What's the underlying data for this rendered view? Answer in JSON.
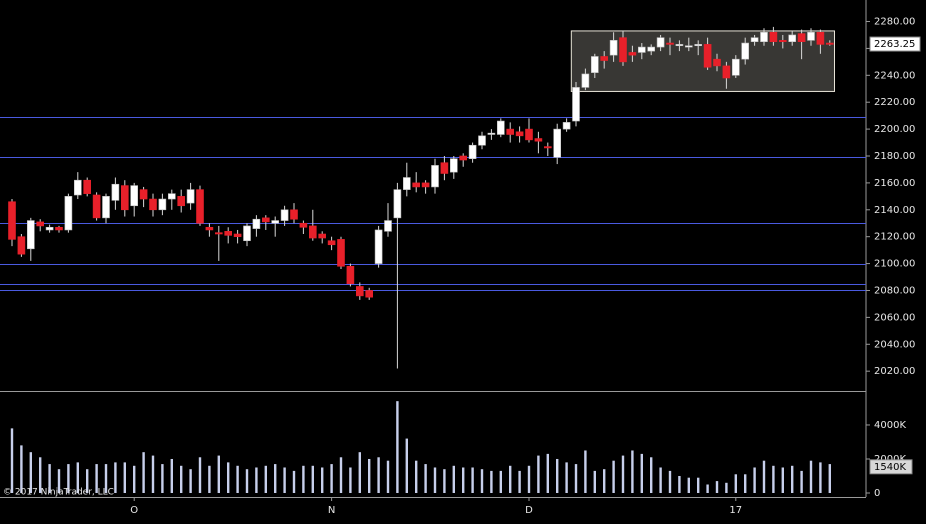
{
  "chart_data": [
    {
      "type": "candlestick",
      "credit": "© 2017 NinjaTrader, LLC",
      "categories": [
        null,
        null,
        null,
        null,
        null,
        null,
        null,
        null,
        null,
        null,
        null,
        null,
        null,
        "O",
        null,
        null,
        null,
        null,
        null,
        null,
        null,
        null,
        null,
        null,
        null,
        null,
        null,
        null,
        null,
        null,
        null,
        null,
        null,
        null,
        "N",
        null,
        null,
        null,
        null,
        null,
        null,
        null,
        null,
        null,
        null,
        null,
        null,
        null,
        null,
        null,
        null,
        null,
        null,
        null,
        null,
        "D",
        null,
        null,
        null,
        null,
        null,
        null,
        null,
        null,
        null,
        null,
        null,
        null,
        null,
        null,
        null,
        null,
        null,
        null,
        null,
        null,
        null,
        "17",
        null,
        null,
        null,
        null,
        null,
        null,
        null,
        null,
        null,
        null
      ],
      "open": [
        2146,
        2120,
        2111,
        2131,
        2125,
        2127,
        2125,
        2151,
        2162,
        2151,
        2134,
        2147,
        2158,
        2143,
        2155,
        2148,
        2140,
        2148,
        2150,
        2145,
        2155,
        2127,
        2123,
        2124,
        2122,
        2117,
        2126,
        2134,
        2130,
        2132,
        2140,
        2130,
        2128,
        2122,
        2117,
        2118,
        2098,
        2083,
        2080,
        2100,
        2124,
        2134,
        2155,
        2160,
        2160,
        2157,
        2175,
        2168,
        2180,
        2178,
        2188,
        2196,
        2196,
        2200,
        2198,
        2200,
        2193,
        2187,
        2179,
        2200,
        2206,
        2231,
        2242,
        2254,
        2255,
        2268,
        2257,
        2257,
        2258,
        2261,
        2264,
        2262,
        2261,
        2262,
        2263,
        2252,
        2247,
        2240,
        2252,
        2265,
        2265,
        2272,
        2266,
        2265,
        2271,
        2266,
        2272,
        2264
      ],
      "high": [
        2148,
        2122,
        2134,
        2133,
        2129,
        2128,
        2152,
        2168,
        2164,
        2153,
        2152,
        2164,
        2162,
        2160,
        2157,
        2152,
        2152,
        2155,
        2155,
        2160,
        2158,
        2130,
        2128,
        2127,
        2125,
        2130,
        2136,
        2136,
        2135,
        2143,
        2145,
        2132,
        2140,
        2124,
        2120,
        2120,
        2100,
        2086,
        2082,
        2128,
        2145,
        2160,
        2175,
        2168,
        2162,
        2178,
        2180,
        2180,
        2182,
        2190,
        2198,
        2200,
        2208,
        2205,
        2202,
        2208,
        2198,
        2190,
        2204,
        2208,
        2235,
        2245,
        2256,
        2258,
        2272,
        2273,
        2262,
        2264,
        2263,
        2270,
        2268,
        2266,
        2268,
        2266,
        2268,
        2256,
        2250,
        2255,
        2268,
        2270,
        2275,
        2276,
        2270,
        2273,
        2274,
        2275,
        2274,
        2266
      ],
      "low": [
        2113,
        2105,
        2102,
        2124,
        2123,
        2123,
        2123,
        2148,
        2150,
        2132,
        2130,
        2140,
        2135,
        2135,
        2142,
        2135,
        2136,
        2140,
        2138,
        2140,
        2128,
        2120,
        2102,
        2115,
        2115,
        2113,
        2120,
        2125,
        2120,
        2128,
        2130,
        2122,
        2117,
        2115,
        2110,
        2096,
        2083,
        2073,
        2073,
        2097,
        2120,
        2022,
        2150,
        2153,
        2152,
        2152,
        2162,
        2163,
        2172,
        2175,
        2185,
        2192,
        2194,
        2190,
        2190,
        2190,
        2182,
        2180,
        2174,
        2198,
        2202,
        2229,
        2238,
        2245,
        2250,
        2247,
        2250,
        2252,
        2255,
        2258,
        2255,
        2258,
        2258,
        2255,
        2244,
        2243,
        2230,
        2238,
        2248,
        2262,
        2262,
        2262,
        2260,
        2262,
        2252,
        2262,
        2256,
        2262
      ],
      "close": [
        2118,
        2107,
        2132,
        2128,
        2127,
        2125,
        2150,
        2162,
        2152,
        2134,
        2150,
        2159,
        2140,
        2158,
        2148,
        2140,
        2148,
        2152,
        2143,
        2155,
        2130,
        2125,
        2122,
        2121,
        2120,
        2128,
        2133,
        2131,
        2132,
        2140,
        2133,
        2127,
        2119,
        2119,
        2114,
        2098,
        2085,
        2076,
        2075,
        2125,
        2132,
        2155,
        2164,
        2157,
        2157,
        2173,
        2167,
        2178,
        2177,
        2188,
        2195,
        2197,
        2206,
        2196,
        2195,
        2192,
        2191,
        2186,
        2200,
        2205,
        2231,
        2241,
        2254,
        2251,
        2266,
        2250,
        2255,
        2261,
        2261,
        2268,
        2263,
        2263,
        2262,
        2263,
        2246,
        2247,
        2238,
        2252,
        2264,
        2268,
        2272,
        2265,
        2265,
        2270,
        2265,
        2272,
        2263,
        2263
      ],
      "up_color": "#ffffff",
      "down_color": "#e8202a",
      "ylim": [
        2006,
        2296
      ],
      "yticks": [
        {
          "value": 2020,
          "label": "2020.00"
        },
        {
          "value": 2040,
          "label": "2040.00"
        },
        {
          "value": 2060,
          "label": "2060.00"
        },
        {
          "value": 2080,
          "label": "2080.00"
        },
        {
          "value": 2100,
          "label": "2100.00"
        },
        {
          "value": 2120,
          "label": "2120.00"
        },
        {
          "value": 2140,
          "label": "2140.00"
        },
        {
          "value": 2160,
          "label": "2160.00"
        },
        {
          "value": 2180,
          "label": "2180.00"
        },
        {
          "value": 2200,
          "label": "2200.00"
        },
        {
          "value": 2220,
          "label": "2220.00"
        },
        {
          "value": 2240,
          "label": "2240.00"
        },
        {
          "value": 2260,
          "label": "2260.00"
        },
        {
          "value": 2280,
          "label": "2280.00"
        }
      ],
      "hlines": [
        2209,
        2179,
        2130,
        2100,
        2085,
        2080
      ],
      "hline_color": "#4a5ae0",
      "box": {
        "start": 60,
        "end": 87,
        "top": 2273,
        "bottom": 2228
      },
      "last_price": 2263.25
    },
    {
      "type": "bar",
      "values": [
        3800,
        2800,
        2400,
        2100,
        1700,
        1400,
        1700,
        1800,
        1400,
        1700,
        1700,
        1800,
        1800,
        1600,
        2400,
        2200,
        1700,
        2000,
        1600,
        1400,
        2100,
        1600,
        2200,
        1800,
        1600,
        1400,
        1500,
        1600,
        1700,
        1500,
        1300,
        1600,
        1600,
        1500,
        1700,
        2100,
        1500,
        2400,
        2000,
        2100,
        1900,
        5400,
        3200,
        1900,
        1700,
        1500,
        1400,
        1600,
        1500,
        1500,
        1400,
        1300,
        1300,
        1600,
        1300,
        1600,
        2200,
        2300,
        2000,
        1800,
        1700,
        2500,
        1300,
        1400,
        1900,
        2200,
        2500,
        2300,
        2100,
        1500,
        1300,
        1000,
        900,
        900,
        500,
        700,
        600,
        1100,
        1100,
        1500,
        1900,
        1600,
        1500,
        1600,
        1300,
        1900,
        1800,
        1700
      ],
      "color": "#c8d0ec",
      "ylim": [
        0,
        5880
      ],
      "yticks": [
        0,
        {
          "value": 2000,
          "label": "2000K"
        },
        {
          "value": 4000,
          "label": "4000K"
        }
      ],
      "last_volume": {
        "value": 1540,
        "label": "1540K"
      }
    }
  ]
}
